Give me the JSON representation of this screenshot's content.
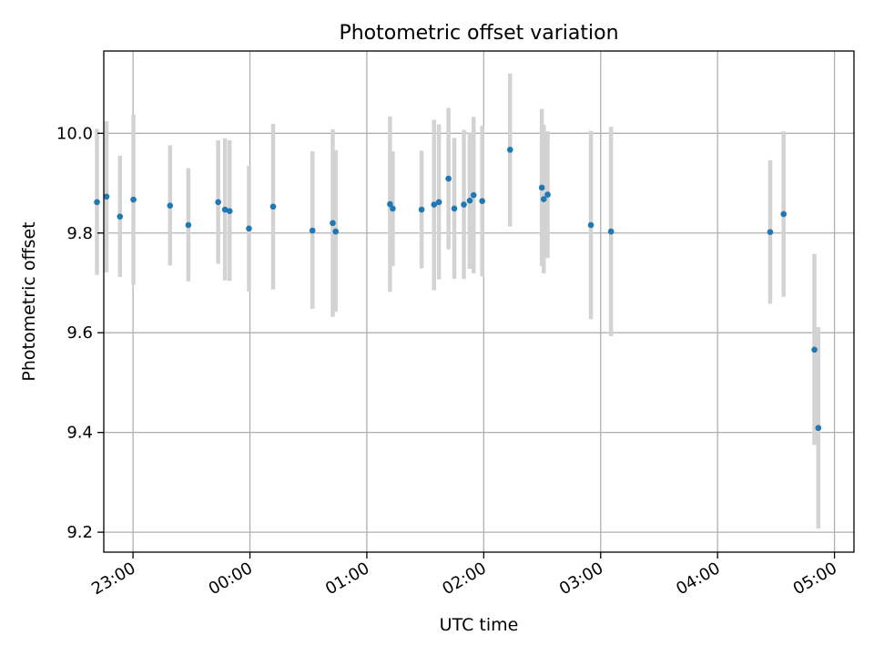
{
  "chart_data": {
    "type": "scatter",
    "title": "Photometric offset variation",
    "xlabel": "UTC time",
    "ylabel": "Photometric offset",
    "x_unit": "minutes since 00:00 UTC (negative = before midnight)",
    "xlim": [
      -75,
      310
    ],
    "ylim": [
      9.16,
      10.165
    ],
    "x_ticks": [
      {
        "value": -60,
        "label": "23:00"
      },
      {
        "value": 0,
        "label": "00:00"
      },
      {
        "value": 60,
        "label": "01:00"
      },
      {
        "value": 120,
        "label": "02:00"
      },
      {
        "value": 180,
        "label": "03:00"
      },
      {
        "value": 240,
        "label": "04:00"
      },
      {
        "value": 300,
        "label": "05:00"
      }
    ],
    "y_ticks": [
      {
        "value": 9.2,
        "label": "9.2"
      },
      {
        "value": 9.4,
        "label": "9.4"
      },
      {
        "value": 9.6,
        "label": "9.6"
      },
      {
        "value": 9.8,
        "label": "9.8"
      },
      {
        "value": 10.0,
        "label": "10.0"
      }
    ],
    "grid": true,
    "colors": {
      "points": "#1f77b4",
      "errorbars": "#d3d3d3",
      "grid": "#b0b0b0"
    },
    "series": [
      {
        "points": [
          {
            "x": -78.5,
            "y": 9.862,
            "lo": 9.716,
            "hi": 10.009
          },
          {
            "x": -73.6,
            "y": 9.873,
            "lo": 9.721,
            "hi": 10.024
          },
          {
            "x": -66.7,
            "y": 9.833,
            "lo": 9.712,
            "hi": 9.955
          },
          {
            "x": -59.8,
            "y": 9.867,
            "lo": 9.696,
            "hi": 10.038
          },
          {
            "x": -41.0,
            "y": 9.855,
            "lo": 9.735,
            "hi": 9.976
          },
          {
            "x": -31.6,
            "y": 9.816,
            "lo": 9.703,
            "hi": 9.93
          },
          {
            "x": -16.3,
            "y": 9.862,
            "lo": 9.738,
            "hi": 9.986
          },
          {
            "x": -12.8,
            "y": 9.847,
            "lo": 9.705,
            "hi": 9.99
          },
          {
            "x": -10.4,
            "y": 9.844,
            "lo": 9.704,
            "hi": 9.986
          },
          {
            "x": -0.5,
            "y": 9.809,
            "lo": 9.683,
            "hi": 9.935
          },
          {
            "x": 11.9,
            "y": 9.853,
            "lo": 9.687,
            "hi": 10.019
          },
          {
            "x": 32.1,
            "y": 9.805,
            "lo": 9.648,
            "hi": 9.964
          },
          {
            "x": 42.5,
            "y": 9.82,
            "lo": 9.632,
            "hi": 10.008
          },
          {
            "x": 44.0,
            "y": 9.803,
            "lo": 9.642,
            "hi": 9.966
          },
          {
            "x": 71.9,
            "y": 9.858,
            "lo": 9.682,
            "hi": 10.034
          },
          {
            "x": 73.3,
            "y": 9.849,
            "lo": 9.734,
            "hi": 9.964
          },
          {
            "x": 88.1,
            "y": 9.847,
            "lo": 9.729,
            "hi": 9.965
          },
          {
            "x": 94.5,
            "y": 9.857,
            "lo": 9.685,
            "hi": 10.027
          },
          {
            "x": 97.0,
            "y": 9.862,
            "lo": 9.707,
            "hi": 10.018
          },
          {
            "x": 101.9,
            "y": 9.909,
            "lo": 9.767,
            "hi": 10.051
          },
          {
            "x": 104.9,
            "y": 9.849,
            "lo": 9.708,
            "hi": 9.991
          },
          {
            "x": 109.8,
            "y": 9.857,
            "lo": 9.708,
            "hi": 10.007
          },
          {
            "x": 112.8,
            "y": 9.865,
            "lo": 9.728,
            "hi": 10.002
          },
          {
            "x": 114.8,
            "y": 9.876,
            "lo": 9.719,
            "hi": 10.033
          },
          {
            "x": 119.2,
            "y": 9.864,
            "lo": 9.713,
            "hi": 10.015
          },
          {
            "x": 133.5,
            "y": 9.967,
            "lo": 9.813,
            "hi": 10.12
          },
          {
            "x": 149.8,
            "y": 9.891,
            "lo": 9.734,
            "hi": 10.049
          },
          {
            "x": 150.8,
            "y": 9.868,
            "lo": 9.719,
            "hi": 10.017
          },
          {
            "x": 152.8,
            "y": 9.877,
            "lo": 9.75,
            "hi": 10.004
          },
          {
            "x": 175.0,
            "y": 9.816,
            "lo": 9.627,
            "hi": 10.005
          },
          {
            "x": 185.3,
            "y": 9.803,
            "lo": 9.593,
            "hi": 10.013
          },
          {
            "x": 267.0,
            "y": 9.802,
            "lo": 9.658,
            "hi": 9.946
          },
          {
            "x": 273.9,
            "y": 9.838,
            "lo": 9.672,
            "hi": 10.004
          },
          {
            "x": 289.7,
            "y": 9.566,
            "lo": 9.375,
            "hi": 9.758
          },
          {
            "x": 291.7,
            "y": 9.409,
            "lo": 9.207,
            "hi": 9.611
          }
        ]
      }
    ]
  }
}
